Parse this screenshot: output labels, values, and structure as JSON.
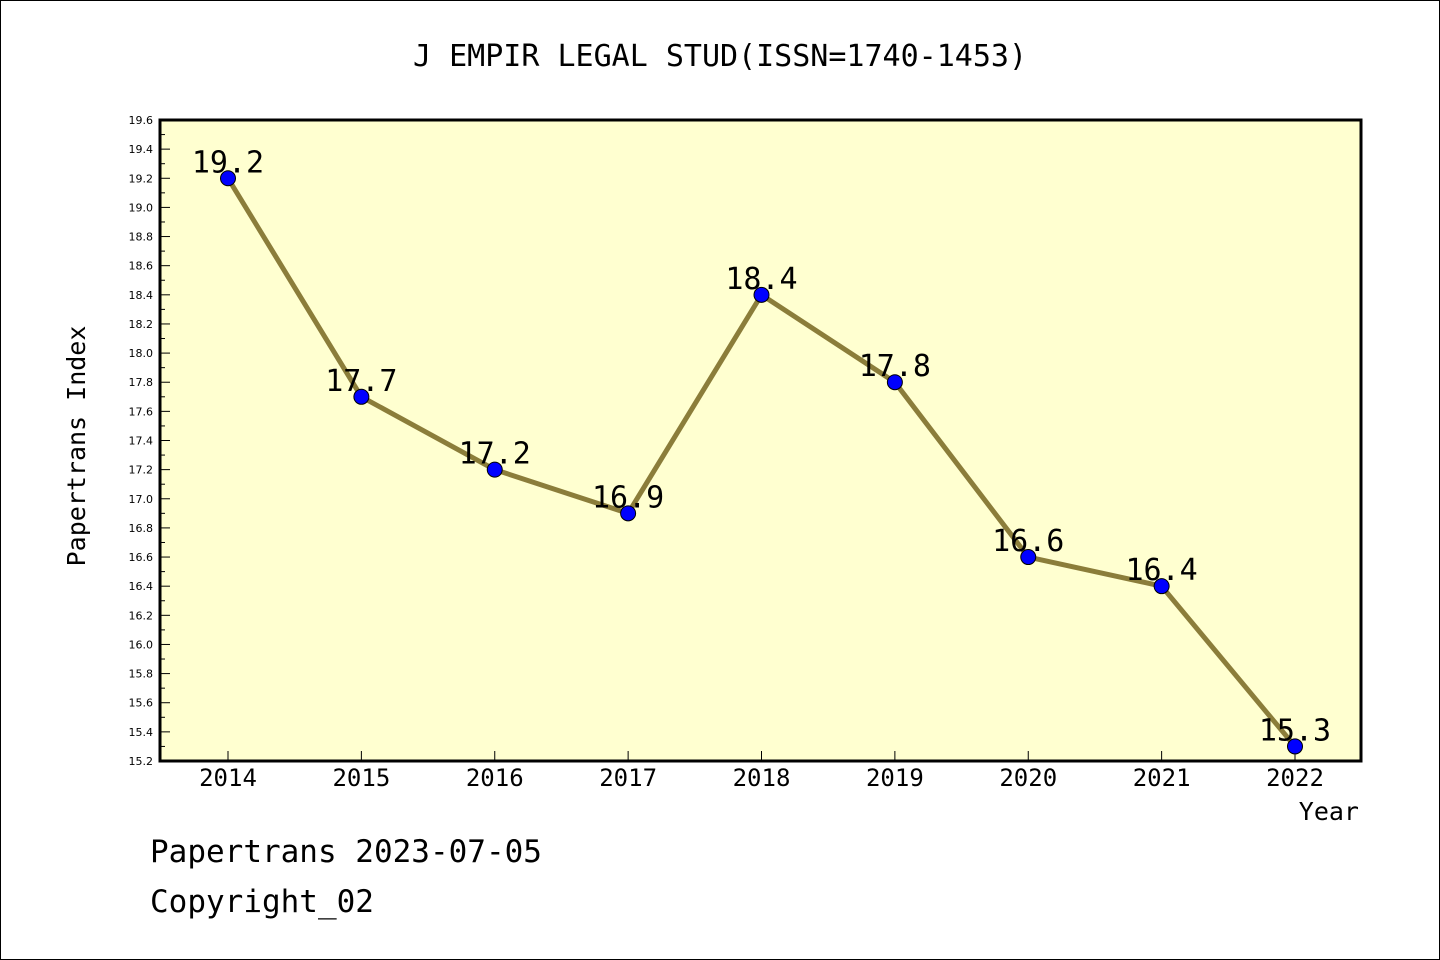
{
  "chart_data": {
    "type": "line",
    "title": "J EMPIR LEGAL STUD(ISSN=1740-1453)",
    "xlabel": "Year",
    "ylabel": "Papertrans Index",
    "categories": [
      "2014",
      "2015",
      "2016",
      "2017",
      "2018",
      "2019",
      "2020",
      "2021",
      "2022"
    ],
    "values": [
      19.2,
      17.7,
      17.2,
      16.9,
      18.4,
      17.8,
      16.6,
      16.4,
      15.3
    ],
    "data_labels": [
      "19.2",
      "17.7",
      "17.2",
      "16.9",
      "18.4",
      "17.8",
      "16.6",
      "16.4",
      "15.3"
    ],
    "ylim": [
      15.2,
      19.6
    ],
    "yticks": [
      "15.2",
      "15.4",
      "15.6",
      "15.8",
      "16.0",
      "16.2",
      "16.4",
      "16.6",
      "16.8",
      "17.0",
      "17.2",
      "17.4",
      "17.6",
      "17.8",
      "18.0",
      "18.2",
      "18.4",
      "18.6",
      "18.8",
      "19.0",
      "19.2",
      "19.4",
      "19.6"
    ],
    "grid": false,
    "legend": "none",
    "colors": {
      "plot_background": "#ffffd0",
      "line": "#8b7d3a",
      "marker": "#0000ff"
    }
  },
  "footer": {
    "line1": "Papertrans 2023-07-05",
    "line2": "Copyright_02"
  }
}
